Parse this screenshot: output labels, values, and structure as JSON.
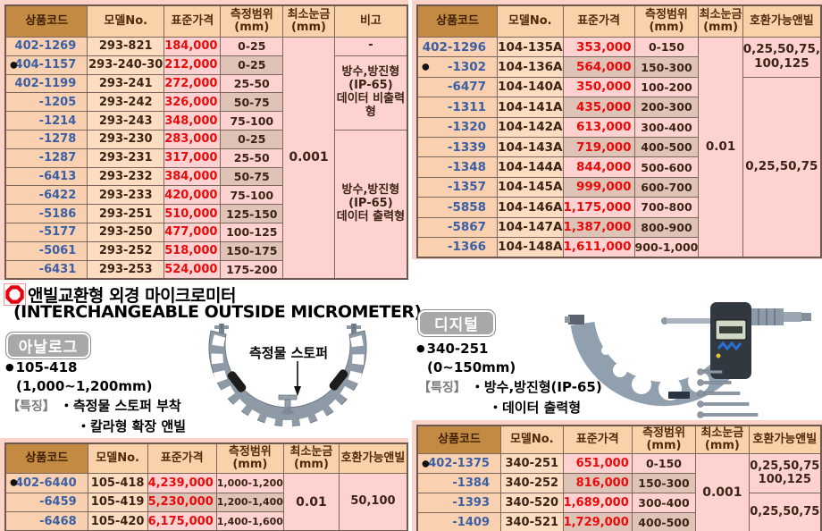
{
  "heading": {
    "ko": "앤빌교환형 외경 마이크로미터",
    "en": "(INTERCHANGEABLE OUTSIDE MICROMETER)"
  },
  "analog": {
    "badge": "아날로그",
    "bullet": "●",
    "code": "105-418",
    "range": "(1,000~1,200mm)",
    "features_label": "【특징】",
    "feature1": "・측정물 스토퍼 부착",
    "feature2": "・칼라형 확장 앤빌",
    "callout": "측정물 스토퍼"
  },
  "digital": {
    "badge": "디지털",
    "bullet": "●",
    "code": "340-251",
    "range": "(0~150mm)",
    "features_label": "【특징】",
    "feature1": "・방수,방진형(IP-65)",
    "feature2": "・데이터 출력형"
  },
  "colors": {
    "accent_red": "#e60012",
    "code_blue": "#3b5fa4",
    "header_brown": "#c28a42",
    "panel_pink": "#fbd3c8",
    "cell_pink": "#fdd2d0",
    "cell_tan": "#dfc3b7"
  },
  "tables": [
    {
      "id": "tl",
      "name": "standard-micrometer-price-table",
      "headers": [
        "상품코드",
        "모델No.",
        "표준가격",
        "측정범위\n(mm)",
        "최소눈금\n(mm)",
        "비고"
      ],
      "alt_price": false,
      "rows": [
        {
          "code": "402-1269",
          "model": "293-821",
          "price": "184,000",
          "range": "0-25",
          "bullet": false
        },
        {
          "code": "404-1157",
          "model": "293-240-30",
          "price": "212,000",
          "range": "0-25",
          "bullet": true
        },
        {
          "code": "402-1199",
          "model": "293-241",
          "price": "272,000",
          "range": "25-50",
          "bullet": false
        },
        {
          "code": "-1205",
          "model": "293-242",
          "price": "326,000",
          "range": "50-75",
          "bullet": false
        },
        {
          "code": "-1214",
          "model": "293-243",
          "price": "348,000",
          "range": "75-100",
          "bullet": false
        },
        {
          "code": "-1278",
          "model": "293-230",
          "price": "283,000",
          "range": "0-25",
          "bullet": false
        },
        {
          "code": "-1287",
          "model": "293-231",
          "price": "317,000",
          "range": "25-50",
          "bullet": false
        },
        {
          "code": "-6413",
          "model": "293-232",
          "price": "384,000",
          "range": "50-75",
          "bullet": false
        },
        {
          "code": "-6422",
          "model": "293-233",
          "price": "420,000",
          "range": "75-100",
          "bullet": false
        },
        {
          "code": "-5186",
          "model": "293-251",
          "price": "510,000",
          "range": "125-150",
          "bullet": false
        },
        {
          "code": "-5177",
          "model": "293-250",
          "price": "477,000",
          "range": "100-125",
          "bullet": false
        },
        {
          "code": "-5061",
          "model": "293-252",
          "price": "518,000",
          "range": "150-175",
          "bullet": false
        },
        {
          "code": "-6431",
          "model": "293-253",
          "price": "524,000",
          "range": "175-200",
          "bullet": false
        }
      ],
      "extras": [
        {
          "cls": "lc",
          "name": "least-count-cell",
          "groups": [
            {
              "text": "0.001",
              "start": 0,
              "span": 13
            }
          ]
        },
        {
          "cls": "note",
          "name": "remarks-cell",
          "groups": [
            {
              "text": "-",
              "start": 0,
              "span": 1
            },
            {
              "text": "방수,방진형\n(IP-65)\n데이터 비출력형",
              "start": 1,
              "span": 4
            },
            {
              "text": "방수,방진형\n(IP-65)\n데이터 출력형",
              "start": 5,
              "span": 8
            }
          ]
        }
      ]
    },
    {
      "id": "tr",
      "name": "interchangeable-anvil-analog-table-large",
      "headers": [
        "상품코드",
        "모델No.",
        "표준가격",
        "측정범위\n(mm)",
        "최소눈금\n(mm)",
        "호환가능앤빌"
      ],
      "alt_price": true,
      "rows": [
        {
          "code": "402-1296",
          "model": "104-135A",
          "price": "353,000",
          "range": "0-150",
          "bullet": false
        },
        {
          "code": "-1302",
          "model": "104-136A",
          "price": "564,000",
          "range": "150-300",
          "bullet": true
        },
        {
          "code": "-6477",
          "model": "104-140A",
          "price": "350,000",
          "range": "100-200",
          "bullet": false
        },
        {
          "code": "-1311",
          "model": "104-141A",
          "price": "435,000",
          "range": "200-300",
          "bullet": false
        },
        {
          "code": "-1320",
          "model": "104-142A",
          "price": "613,000",
          "range": "300-400",
          "bullet": false
        },
        {
          "code": "-1339",
          "model": "104-143A",
          "price": "719,000",
          "range": "400-500",
          "bullet": false
        },
        {
          "code": "-1348",
          "model": "104-144A",
          "price": "844,000",
          "range": "500-600",
          "bullet": false
        },
        {
          "code": "-1357",
          "model": "104-145A",
          "price": "999,000",
          "range": "600-700",
          "bullet": false
        },
        {
          "code": "-5858",
          "model": "104-146A",
          "price": "1,175,000",
          "range": "700-800",
          "bullet": false
        },
        {
          "code": "-5867",
          "model": "104-147A",
          "price": "1,387,000",
          "range": "800-900",
          "bullet": false
        },
        {
          "code": "-1366",
          "model": "104-148A",
          "price": "1,611,000",
          "range": "900-1,000",
          "bullet": false
        }
      ],
      "extras": [
        {
          "cls": "lc",
          "name": "least-count-cell",
          "groups": [
            {
              "text": "0.01",
              "start": 0,
              "span": 11
            }
          ]
        },
        {
          "cls": "note",
          "name": "anvil-cell",
          "groups": [
            {
              "text": "0,25,50,75,\n100,125",
              "start": 0,
              "span": 2
            },
            {
              "text": "0,25,50,75",
              "start": 2,
              "span": 9
            }
          ]
        }
      ]
    },
    {
      "id": "bl",
      "name": "analog-interchangeable-micrometer-table",
      "headers": [
        "상품코드",
        "모델No.",
        "표준가격",
        "측정범위\n(mm)",
        "최소눈금\n(mm)",
        "호환가능앤빌"
      ],
      "alt_price": true,
      "rows": [
        {
          "code": "402-6440",
          "model": "105-418",
          "price": "4,239,000",
          "range": "1,000-1,200",
          "bullet": true
        },
        {
          "code": "-6459",
          "model": "105-419",
          "price": "5,230,000",
          "range": "1,200-1,400",
          "bullet": false
        },
        {
          "code": "-6468",
          "model": "105-420",
          "price": "6,175,000",
          "range": "1,400-1,600",
          "bullet": false
        }
      ],
      "extras": [
        {
          "cls": "lc",
          "name": "least-count-cell",
          "groups": [
            {
              "text": "0.01",
              "start": 0,
              "span": 3
            }
          ]
        },
        {
          "cls": "note",
          "name": "anvil-cell",
          "groups": [
            {
              "text": "50,100",
              "start": 0,
              "span": 3
            }
          ]
        }
      ]
    },
    {
      "id": "br",
      "name": "digital-interchangeable-micrometer-table",
      "headers": [
        "상품코드",
        "모델No.",
        "표준가격",
        "측정범위\n(mm)",
        "최소눈금\n(mm)",
        "호환가능앤빌"
      ],
      "alt_price": true,
      "rows": [
        {
          "code": "402-1375",
          "model": "340-251",
          "price": "651,000",
          "range": "0-150",
          "bullet": true
        },
        {
          "code": "-1384",
          "model": "340-252",
          "price": "816,000",
          "range": "150-300",
          "bullet": false
        },
        {
          "code": "-1393",
          "model": "340-520",
          "price": "1,689,000",
          "range": "300-400",
          "bullet": false
        },
        {
          "code": "-1409",
          "model": "340-521",
          "price": "1,729,000",
          "range": "400-500",
          "bullet": false
        }
      ],
      "extras": [
        {
          "cls": "lc",
          "name": "least-count-cell",
          "groups": [
            {
              "text": "0.001",
              "start": 0,
              "span": 4
            }
          ]
        },
        {
          "cls": "note",
          "name": "anvil-cell",
          "groups": [
            {
              "text": "0,25,50,75\n100,125",
              "start": 0,
              "span": 2
            },
            {
              "text": "0,25,50,75",
              "start": 2,
              "span": 2
            }
          ]
        }
      ]
    }
  ]
}
